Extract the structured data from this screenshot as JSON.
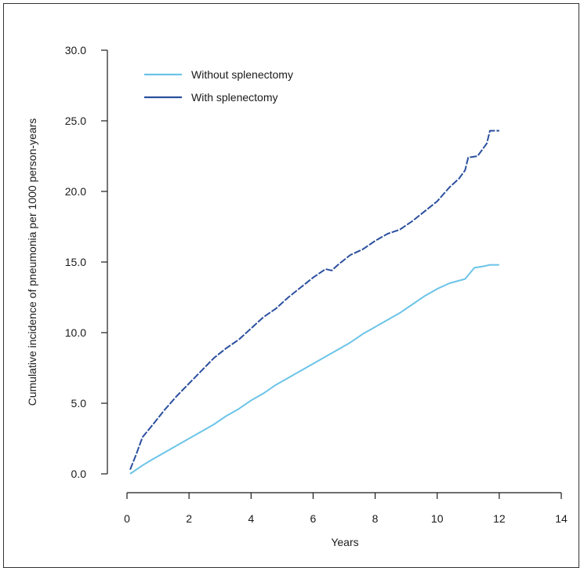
{
  "chart_data": {
    "type": "line",
    "title": "",
    "xlabel": "Years",
    "ylabel": "Cumulative incidence of pneumonia per 1000 person-years",
    "xlim": [
      0,
      14
    ],
    "ylim": [
      0,
      30
    ],
    "x_ticks": [
      "0",
      "2",
      "4",
      "6",
      "8",
      "10",
      "12",
      "14"
    ],
    "y_ticks": [
      "0.0",
      "5.0",
      "10.0",
      "15.0",
      "20.0",
      "25.0",
      "30.0"
    ],
    "grid": false,
    "legend_position": "top-left",
    "series": [
      {
        "name": "Without splenectomy",
        "color": "#6cc4e8",
        "x": [
          0.1,
          0.5,
          0.8,
          1.2,
          1.6,
          2.0,
          2.4,
          2.8,
          3.2,
          3.6,
          4.0,
          4.4,
          4.8,
          5.2,
          5.6,
          6.0,
          6.4,
          6.8,
          7.2,
          7.6,
          8.0,
          8.4,
          8.8,
          9.2,
          9.6,
          10.0,
          10.4,
          10.9,
          11.2,
          11.5,
          11.7,
          12.0
        ],
        "values": [
          0.0,
          0.6,
          1.0,
          1.5,
          2.0,
          2.5,
          3.0,
          3.5,
          4.1,
          4.6,
          5.2,
          5.7,
          6.3,
          6.8,
          7.3,
          7.8,
          8.3,
          8.8,
          9.3,
          9.9,
          10.4,
          10.9,
          11.4,
          12.0,
          12.6,
          13.1,
          13.5,
          13.8,
          14.6,
          14.7,
          14.8,
          14.8
        ]
      },
      {
        "name": "With splenectomy",
        "color": "#2b4f9e",
        "x": [
          0.1,
          0.3,
          0.5,
          0.8,
          1.2,
          1.6,
          2.0,
          2.4,
          2.8,
          3.2,
          3.6,
          4.0,
          4.4,
          4.8,
          5.2,
          5.6,
          6.0,
          6.4,
          6.6,
          6.8,
          7.2,
          7.6,
          8.0,
          8.4,
          8.8,
          9.2,
          9.6,
          10.0,
          10.4,
          10.7,
          10.9,
          11.0,
          11.3,
          11.5,
          11.6,
          11.7,
          12.0
        ],
        "values": [
          0.3,
          1.4,
          2.6,
          3.4,
          4.5,
          5.5,
          6.4,
          7.3,
          8.2,
          8.9,
          9.5,
          10.3,
          11.1,
          11.7,
          12.5,
          13.2,
          13.9,
          14.5,
          14.4,
          14.8,
          15.5,
          15.9,
          16.5,
          17.0,
          17.3,
          17.9,
          18.6,
          19.3,
          20.3,
          20.9,
          21.5,
          22.4,
          22.5,
          23.1,
          23.4,
          24.3,
          24.3
        ]
      }
    ]
  }
}
